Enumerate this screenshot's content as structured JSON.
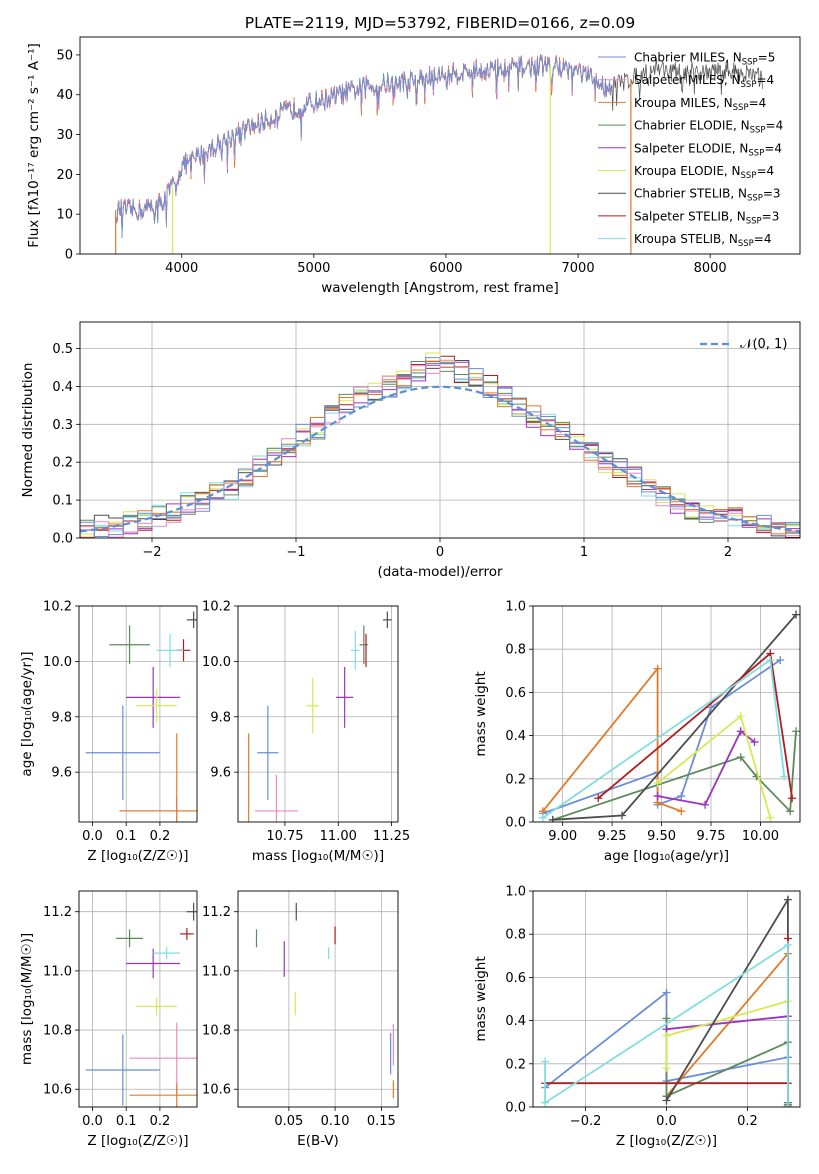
{
  "figure": {
    "title": "PLATE=2119, MJD=53792, FIBERID=0166, z=0.09"
  },
  "legend_entries": [
    {
      "label": "Chabrier MILES, N",
      "sub": "SSP",
      "suffix": "=5",
      "color": "#6a8ed6"
    },
    {
      "label": "Salpeter MILES, N",
      "sub": "SSP",
      "suffix": "=4",
      "color": "#e889c0"
    },
    {
      "label": "Kroupa MILES, N",
      "sub": "SSP",
      "suffix": "=4",
      "color": "#e07b2a"
    },
    {
      "label": "Chabrier ELODIE, N",
      "sub": "SSP",
      "suffix": "=4",
      "color": "#5d8a5d"
    },
    {
      "label": "Salpeter ELODIE, N",
      "sub": "SSP",
      "suffix": "=4",
      "color": "#9b35c0"
    },
    {
      "label": "Kroupa ELODIE, N",
      "sub": "SSP",
      "suffix": "=4",
      "color": "#d7ea55"
    },
    {
      "label": "Chabrier STELIB, N",
      "sub": "SSP",
      "suffix": "=3",
      "color": "#4d4d4d"
    },
    {
      "label": "Salpeter STELIB, N",
      "sub": "SSP",
      "suffix": "=3",
      "color": "#b01c22"
    },
    {
      "label": "Kroupa STELIB, N",
      "sub": "SSP",
      "suffix": "=4",
      "color": "#80dde0"
    }
  ],
  "hist_legend": "𝒩(0, 1)",
  "chart_data": [
    {
      "id": "spectrum",
      "type": "line",
      "xlabel": "wavelength [Angstrom, rest frame]",
      "ylabel": "Flux [fλ10⁻¹⁷ erg cm⁻² s⁻¹ A⁻¹]",
      "xlim": [
        3230,
        8680
      ],
      "ylim": [
        0,
        54.5
      ],
      "xticks": [
        4000,
        5000,
        6000,
        7000,
        8000
      ],
      "yticks": [
        0,
        10,
        20,
        30,
        40,
        50
      ],
      "grid": false,
      "continuum": [
        [
          3500,
          11
        ],
        [
          3700,
          11
        ],
        [
          3850,
          13
        ],
        [
          3950,
          18
        ],
        [
          4000,
          22
        ],
        [
          4200,
          26
        ],
        [
          4400,
          30
        ],
        [
          4600,
          33
        ],
        [
          4800,
          36
        ],
        [
          5000,
          38
        ],
        [
          5200,
          40
        ],
        [
          5400,
          42
        ],
        [
          5600,
          43
        ],
        [
          5800,
          44
        ],
        [
          6000,
          45
        ],
        [
          6200,
          46
        ],
        [
          6400,
          46.5
        ],
        [
          6600,
          47
        ],
        [
          6800,
          47.5
        ],
        [
          7000,
          46
        ],
        [
          7200,
          42
        ],
        [
          7400,
          44
        ],
        [
          7600,
          47
        ],
        [
          7800,
          45
        ],
        [
          8000,
          46
        ],
        [
          8200,
          46
        ],
        [
          8400,
          44
        ]
      ]
    },
    {
      "id": "residual_hist",
      "type": "histogram",
      "xlabel": "(data-model)/error",
      "ylabel": "Normed distribution",
      "xlim": [
        -2.5,
        2.5
      ],
      "ylim": [
        0,
        0.57
      ],
      "xticks": [
        -2,
        -1,
        0,
        1,
        2
      ],
      "yticks": [
        0.0,
        0.1,
        0.2,
        0.3,
        0.4,
        0.5
      ],
      "grid": true,
      "bin_edges": [
        -2.5,
        -2.4,
        -2.3,
        -2.2,
        -2.1,
        -2.0,
        -1.9,
        -1.8,
        -1.7,
        -1.6,
        -1.5,
        -1.4,
        -1.3,
        -1.2,
        -1.1,
        -1.0,
        -0.9,
        -0.8,
        -0.7,
        -0.6,
        -0.5,
        -0.4,
        -0.3,
        -0.2,
        -0.1,
        0.0,
        0.1,
        0.2,
        0.3,
        0.4,
        0.5,
        0.6,
        0.7,
        0.8,
        0.9,
        1.0,
        1.1,
        1.2,
        1.3,
        1.4,
        1.5,
        1.6,
        1.7,
        1.8,
        1.9,
        2.0,
        2.1,
        2.2,
        2.3,
        2.4,
        2.5
      ],
      "base_density": [
        0.02,
        0.03,
        0.03,
        0.04,
        0.05,
        0.06,
        0.07,
        0.09,
        0.1,
        0.12,
        0.13,
        0.16,
        0.19,
        0.22,
        0.24,
        0.27,
        0.29,
        0.32,
        0.35,
        0.37,
        0.38,
        0.4,
        0.42,
        0.44,
        0.46,
        0.46,
        0.44,
        0.42,
        0.4,
        0.37,
        0.35,
        0.32,
        0.3,
        0.28,
        0.25,
        0.23,
        0.2,
        0.18,
        0.16,
        0.13,
        0.11,
        0.09,
        0.08,
        0.07,
        0.06,
        0.05,
        0.04,
        0.04,
        0.03,
        0.03
      ],
      "gaussian_label": "𝒩(0, 1)"
    },
    {
      "id": "age_vs_Z",
      "type": "errorbar",
      "xlabel": "Z [log₁₀(Z/Z☉)]",
      "ylabel": "age  [log₁₀(age/yr)]",
      "xlim": [
        -0.04,
        0.31
      ],
      "ylim": [
        9.42,
        10.2
      ],
      "xticks": [
        0.0,
        0.1,
        0.2
      ],
      "yticks": [
        9.6,
        9.8,
        10.0,
        10.2
      ],
      "points": [
        {
          "name": "Chabrier MILES",
          "x": 0.09,
          "y": 9.67,
          "xerr": 0.11,
          "yerr": 0.17
        },
        {
          "name": "Salpeter MILES",
          "x": 0.25,
          "y": 9.46,
          "xerr": 0.17,
          "yerr": 0.05
        },
        {
          "name": "Kroupa MILES",
          "x": 0.25,
          "y": 9.46,
          "xerr": 0.17,
          "yerr": 0.28
        },
        {
          "name": "Chabrier ELODIE",
          "x": 0.11,
          "y": 10.06,
          "xerr": 0.06,
          "yerr": 0.07
        },
        {
          "name": "Salpeter ELODIE",
          "x": 0.18,
          "y": 9.87,
          "xerr": 0.08,
          "yerr": 0.11
        },
        {
          "name": "Kroupa ELODIE",
          "x": 0.19,
          "y": 9.84,
          "xerr": 0.06,
          "yerr": 0.06
        },
        {
          "name": "Chabrier STELIB",
          "x": 0.3,
          "y": 10.15,
          "xerr": 0.02,
          "yerr": 0.03
        },
        {
          "name": "Salpeter STELIB",
          "x": 0.27,
          "y": 10.04,
          "xerr": 0.02,
          "yerr": 0.04
        },
        {
          "name": "Kroupa STELIB",
          "x": 0.23,
          "y": 10.04,
          "xerr": 0.04,
          "yerr": 0.06
        }
      ]
    },
    {
      "id": "age_vs_mass",
      "type": "errorbar",
      "xlabel": "mass [log₁₀(M/M☉)]",
      "ylabel": "",
      "xlim": [
        10.53,
        11.28
      ],
      "ylim": [
        9.42,
        10.2
      ],
      "xticks": [
        10.75,
        11.0,
        11.25
      ],
      "yticks": [
        9.6,
        9.8,
        10.0,
        10.2
      ],
      "points": [
        {
          "name": "Chabrier MILES",
          "x": 10.67,
          "y": 9.67,
          "xerr": 0.05,
          "yerr": 0.17
        },
        {
          "name": "Salpeter MILES",
          "x": 10.71,
          "y": 9.46,
          "xerr": 0.1,
          "yerr": 0.13
        },
        {
          "name": "Kroupa MILES",
          "x": 10.58,
          "y": 9.46,
          "xerr": 0.0,
          "yerr": 0.28
        },
        {
          "name": "Chabrier ELODIE",
          "x": 11.12,
          "y": 10.06,
          "xerr": 0.02,
          "yerr": 0.07
        },
        {
          "name": "Salpeter ELODIE",
          "x": 11.03,
          "y": 9.87,
          "xerr": 0.04,
          "yerr": 0.11
        },
        {
          "name": "Kroupa ELODIE",
          "x": 10.88,
          "y": 9.84,
          "xerr": 0.03,
          "yerr": 0.1
        },
        {
          "name": "Chabrier STELIB",
          "x": 11.23,
          "y": 10.15,
          "xerr": 0.02,
          "yerr": 0.03
        },
        {
          "name": "Salpeter STELIB",
          "x": 11.13,
          "y": 10.04,
          "xerr": 0.0,
          "yerr": 0.06
        },
        {
          "name": "Kroupa STELIB",
          "x": 11.08,
          "y": 10.04,
          "xerr": 0.02,
          "yerr": 0.07
        }
      ]
    },
    {
      "id": "weight_vs_age",
      "type": "line",
      "xlabel": "age  [log₁₀(age/yr)]",
      "ylabel": "mass weight",
      "xlim": [
        8.85,
        10.2
      ],
      "ylim": [
        0,
        1.0
      ],
      "xticks": [
        9.0,
        9.25,
        9.5,
        9.75,
        10.0
      ],
      "yticks": [
        0.0,
        0.2,
        0.4,
        0.6,
        0.8,
        1.0
      ],
      "series": [
        {
          "name": "Chabrier MILES",
          "x": [
            8.9,
            9.48,
            9.48,
            9.6,
            9.75,
            10.1
          ],
          "y": [
            0.04,
            0.23,
            0.08,
            0.12,
            0.53,
            0.75
          ]
        },
        {
          "name": "Kroupa MILES",
          "x": [
            8.9,
            9.48,
            9.48,
            9.6
          ],
          "y": [
            0.05,
            0.71,
            0.09,
            0.05
          ]
        },
        {
          "name": "Chabrier ELODIE",
          "x": [
            8.95,
            9.9,
            9.98,
            10.15,
            10.18
          ],
          "y": [
            0.01,
            0.3,
            0.21,
            0.05,
            0.42
          ]
        },
        {
          "name": "Salpeter ELODIE",
          "x": [
            9.48,
            9.72,
            9.9,
            9.97
          ],
          "y": [
            0.12,
            0.08,
            0.42,
            0.37
          ]
        },
        {
          "name": "Kroupa ELODIE",
          "x": [
            9.48,
            9.9,
            10.05
          ],
          "y": [
            0.18,
            0.49,
            0.02
          ]
        },
        {
          "name": "Chabrier STELIB",
          "x": [
            8.95,
            9.3,
            10.18
          ],
          "y": [
            0.01,
            0.03,
            0.96
          ]
        },
        {
          "name": "Salpeter STELIB",
          "x": [
            9.18,
            10.05,
            10.16
          ],
          "y": [
            0.11,
            0.78,
            0.11
          ]
        },
        {
          "name": "Kroupa STELIB",
          "x": [
            8.9,
            10.05,
            10.12
          ],
          "y": [
            0.02,
            0.75,
            0.21
          ]
        }
      ]
    },
    {
      "id": "mass_vs_Z",
      "type": "errorbar",
      "xlabel": "Z [log₁₀(Z/Z☉)]",
      "ylabel": "mass [log₁₀(M/M☉)]",
      "xlim": [
        -0.04,
        0.31
      ],
      "ylim": [
        10.54,
        11.27
      ],
      "xticks": [
        0.0,
        0.1,
        0.2
      ],
      "yticks": [
        10.6,
        10.8,
        11.0,
        11.2
      ],
      "points": [
        {
          "name": "Chabrier MILES",
          "x": 0.09,
          "y": 10.665,
          "xerr": 0.11,
          "yerr": 0.12
        },
        {
          "name": "Salpeter MILES",
          "x": 0.25,
          "y": 10.705,
          "xerr": 0.14,
          "yerr": 0.12
        },
        {
          "name": "Kroupa MILES",
          "x": 0.25,
          "y": 10.58,
          "xerr": 0.14,
          "yerr": 0.04
        },
        {
          "name": "Chabrier ELODIE",
          "x": 0.11,
          "y": 11.11,
          "xerr": 0.04,
          "yerr": 0.03
        },
        {
          "name": "Salpeter ELODIE",
          "x": 0.18,
          "y": 11.025,
          "xerr": 0.08,
          "yerr": 0.05
        },
        {
          "name": "Kroupa ELODIE",
          "x": 0.19,
          "y": 10.88,
          "xerr": 0.06,
          "yerr": 0.03
        },
        {
          "name": "Chabrier STELIB",
          "x": 0.3,
          "y": 11.2,
          "xerr": 0.02,
          "yerr": 0.03
        },
        {
          "name": "Salpeter STELIB",
          "x": 0.28,
          "y": 11.125,
          "xerr": 0.02,
          "yerr": 0.02
        },
        {
          "name": "Kroupa STELIB",
          "x": 0.22,
          "y": 11.06,
          "xerr": 0.04,
          "yerr": 0.02
        }
      ]
    },
    {
      "id": "mass_vs_EBV",
      "type": "errorbar",
      "xlabel": "E(B-V)",
      "ylabel": "",
      "xlim": [
        -0.005,
        0.168
      ],
      "ylim": [
        10.54,
        11.27
      ],
      "xticks": [
        0.05,
        0.1,
        0.15
      ],
      "yticks": [
        10.6,
        10.8,
        11.0,
        11.2
      ],
      "points": [
        {
          "name": "Chabrier MILES",
          "x": 0.16,
          "y": 10.72,
          "xerr": 0.0,
          "yerr": 0.07
        },
        {
          "name": "Salpeter MILES",
          "x": 0.163,
          "y": 10.75,
          "xerr": 0.0,
          "yerr": 0.07
        },
        {
          "name": "Kroupa MILES",
          "x": 0.163,
          "y": 10.6,
          "xerr": 0.0,
          "yerr": 0.03
        },
        {
          "name": "Chabrier ELODIE",
          "x": 0.015,
          "y": 11.11,
          "xerr": 0.0,
          "yerr": 0.03
        },
        {
          "name": "Salpeter ELODIE",
          "x": 0.045,
          "y": 11.04,
          "xerr": 0.0,
          "yerr": 0.06
        },
        {
          "name": "Kroupa ELODIE",
          "x": 0.057,
          "y": 10.89,
          "xerr": 0.0,
          "yerr": 0.04
        },
        {
          "name": "Chabrier STELIB",
          "x": 0.058,
          "y": 11.2,
          "xerr": 0.0,
          "yerr": 0.03
        },
        {
          "name": "Salpeter STELIB",
          "x": 0.1,
          "y": 11.12,
          "xerr": 0.0,
          "yerr": 0.03
        },
        {
          "name": "Kroupa STELIB",
          "x": 0.093,
          "y": 11.06,
          "xerr": 0.0,
          "yerr": 0.02
        }
      ]
    },
    {
      "id": "weight_vs_Z",
      "type": "line",
      "xlabel": "Z [log₁₀(Z/Z☉)]",
      "ylabel": "mass weight",
      "xlim": [
        -0.33,
        0.33
      ],
      "ylim": [
        0,
        1.0
      ],
      "xticks": [
        -0.2,
        0.0,
        0.2
      ],
      "yticks": [
        0.0,
        0.2,
        0.4,
        0.6,
        0.8,
        1.0
      ],
      "series": [
        {
          "name": "Chabrier MILES",
          "x": [
            -0.3,
            0.0,
            0.0,
            0.3,
            0.3
          ],
          "y": [
            0.09,
            0.53,
            0.12,
            0.23,
            0.0
          ]
        },
        {
          "name": "Kroupa MILES",
          "x": [
            0.0,
            0.3,
            0.3
          ],
          "y": [
            0.05,
            0.71,
            0.0
          ]
        },
        {
          "name": "Chabrier ELODIE",
          "x": [
            0.0,
            0.0,
            0.3,
            0.3
          ],
          "y": [
            0.41,
            0.05,
            0.3,
            0.02
          ]
        },
        {
          "name": "Salpeter ELODIE",
          "x": [
            0.0,
            0.3,
            0.3
          ],
          "y": [
            0.36,
            0.42,
            0.0
          ]
        },
        {
          "name": "Kroupa ELODIE",
          "x": [
            0.0,
            0.0,
            0.3,
            0.3
          ],
          "y": [
            0.18,
            0.33,
            0.49,
            0.0
          ]
        },
        {
          "name": "Chabrier STELIB",
          "x": [
            0.0,
            0.3,
            0.3
          ],
          "y": [
            0.03,
            0.96,
            0.01
          ]
        },
        {
          "name": "Salpeter STELIB",
          "x": [
            -0.3,
            0.3,
            0.3
          ],
          "y": [
            0.11,
            0.11,
            0.78
          ]
        },
        {
          "name": "Kroupa STELIB",
          "x": [
            -0.3,
            -0.3,
            0.3,
            0.3
          ],
          "y": [
            0.21,
            0.02,
            0.75,
            0.0
          ]
        }
      ]
    }
  ]
}
